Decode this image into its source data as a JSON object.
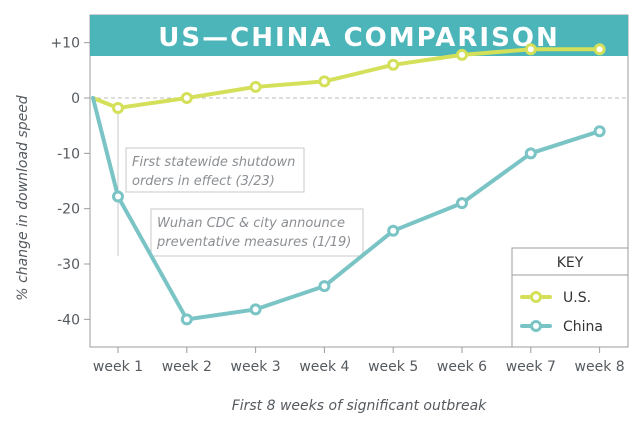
{
  "chart_data": {
    "type": "line",
    "title": "US—CHINA COMPARISON",
    "ylabel": "% change in download speed",
    "xlabel": "First 8 weeks of significant outbreak",
    "categories": [
      "week 1",
      "week 2",
      "week 3",
      "week 4",
      "week 5",
      "week 6",
      "week 7",
      "week 8"
    ],
    "yticks": [
      10,
      0,
      -10,
      -20,
      -30,
      -40
    ],
    "ytick_labels": [
      "+10",
      "0",
      "-10",
      "-20",
      "-30",
      "-40"
    ],
    "ylim": [
      -45,
      15
    ],
    "grid": false,
    "zero_line": "dashed",
    "series": [
      {
        "name": "U.S.",
        "color": "#d4e05a",
        "start": 0,
        "values": [
          -1.8,
          0,
          2,
          3,
          6,
          7.8,
          8.8,
          8.8
        ]
      },
      {
        "name": "China",
        "color": "#7bc4c6",
        "start": 0,
        "values": [
          -17.8,
          -40,
          -38.2,
          -34,
          -24,
          -19,
          -10,
          -6
        ]
      }
    ],
    "annotations": [
      {
        "lines": [
          "First statewide shutdown",
          "orders in effect (3/23)"
        ],
        "series": "U.S.",
        "week": 1
      },
      {
        "lines": [
          "Wuhan CDC & city announce",
          "preventative measures (1/19)"
        ],
        "series": "China",
        "week": 1
      }
    ],
    "legend": {
      "title": "KEY",
      "placement": "bottom-right"
    },
    "colors": {
      "title_bar": "#4bb5b9",
      "frame": "#9a9da0",
      "zero_line": "#bdbdbd",
      "annotation_border": "#c9c9c9"
    }
  }
}
